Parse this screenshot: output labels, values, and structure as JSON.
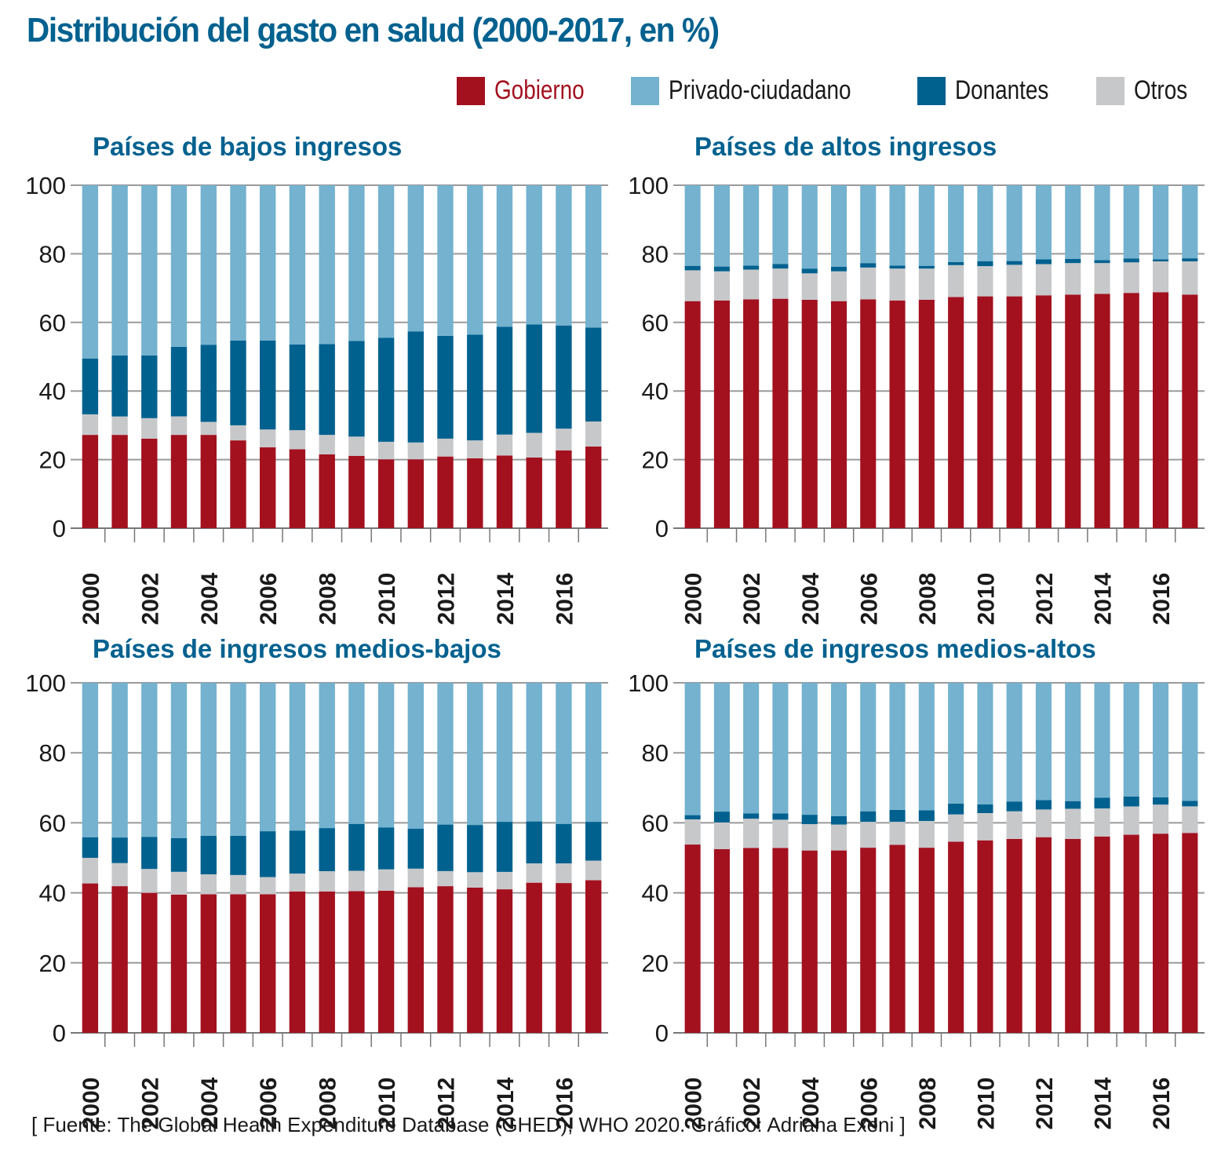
{
  "title": "Distribución del gasto en salud (2000-2017, en %)",
  "footer": "[ Fuente: The Global Health Expenditure Database (GHED), WHO 2020. Gráfico: Adriana Exeni ]",
  "legend": [
    {
      "key": "gobierno",
      "label": "Gobierno",
      "color": "#a3111f"
    },
    {
      "key": "privado",
      "label": "Privado-ciudadano",
      "color": "#74b2cf"
    },
    {
      "key": "donantes",
      "label": "Donantes",
      "color": "#00618f"
    },
    {
      "key": "otros",
      "label": "Otros",
      "color": "#c7c8ca"
    }
  ],
  "chart_data": [
    {
      "type": "bar",
      "stacked": true,
      "title": "Países de bajos ingresos",
      "x": [
        2000,
        2001,
        2002,
        2003,
        2004,
        2005,
        2006,
        2007,
        2008,
        2009,
        2010,
        2011,
        2012,
        2013,
        2014,
        2015,
        2016,
        2017
      ],
      "xtick_labels": [
        "2000",
        "2002",
        "2004",
        "2006",
        "2008",
        "2010",
        "2012",
        "2014",
        "2016"
      ],
      "ytick_labels": [
        "0",
        "20",
        "40",
        "60",
        "80",
        "100"
      ],
      "ylim": [
        0,
        100
      ],
      "grid": true,
      "series": [
        {
          "name": "Gobierno",
          "values": [
            27.2,
            27.2,
            26.1,
            27.2,
            27.2,
            25.6,
            23.6,
            23.0,
            21.5,
            21.1,
            20.1,
            20.1,
            20.9,
            20.4,
            21.2,
            20.6,
            22.7,
            23.8
          ]
        },
        {
          "name": "Otros",
          "values": [
            6.0,
            5.4,
            6.0,
            5.4,
            3.8,
            4.4,
            5.2,
            5.6,
            5.7,
            5.6,
            5.1,
            4.9,
            5.2,
            5.2,
            6.1,
            7.2,
            6.3,
            7.3
          ]
        },
        {
          "name": "Donantes",
          "values": [
            16.3,
            17.8,
            18.3,
            20.3,
            22.5,
            24.7,
            25.9,
            25.0,
            26.5,
            27.9,
            30.3,
            32.4,
            30.0,
            30.8,
            31.4,
            31.6,
            30.1,
            27.4
          ]
        },
        {
          "name": "Privado-ciudadano",
          "values": [
            50.5,
            49.6,
            49.6,
            47.1,
            46.5,
            45.3,
            45.3,
            46.4,
            46.3,
            45.4,
            44.5,
            42.6,
            43.9,
            43.6,
            41.3,
            40.6,
            40.9,
            41.5
          ]
        }
      ]
    },
    {
      "type": "bar",
      "stacked": true,
      "title": "Países de altos ingresos",
      "x": [
        2000,
        2001,
        2002,
        2003,
        2004,
        2005,
        2006,
        2007,
        2008,
        2009,
        2010,
        2011,
        2012,
        2013,
        2014,
        2015,
        2016,
        2017
      ],
      "xtick_labels": [
        "2000",
        "2002",
        "2004",
        "2006",
        "2008",
        "2010",
        "2012",
        "2014",
        "2016"
      ],
      "ytick_labels": [
        "0",
        "20",
        "40",
        "60",
        "80",
        "100"
      ],
      "ylim": [
        0,
        100
      ],
      "grid": true,
      "series": [
        {
          "name": "Gobierno",
          "values": [
            66.2,
            66.4,
            66.7,
            66.9,
            66.6,
            66.2,
            66.7,
            66.4,
            66.6,
            67.4,
            67.6,
            67.6,
            67.9,
            68.1,
            68.3,
            68.6,
            68.8,
            68.1
          ]
        },
        {
          "name": "Otros",
          "values": [
            9.0,
            8.5,
            8.7,
            8.8,
            7.7,
            8.7,
            9.3,
            9.3,
            9.1,
            9.3,
            8.8,
            9.2,
            9.1,
            9.2,
            9.0,
            8.9,
            9.0,
            9.7
          ]
        },
        {
          "name": "Donantes",
          "values": [
            1.3,
            1.4,
            1.2,
            1.3,
            1.4,
            1.3,
            1.3,
            0.9,
            0.8,
            0.9,
            1.4,
            1.1,
            1.4,
            1.2,
            0.9,
            1.1,
            0.6,
            0.9
          ]
        },
        {
          "name": "Privado-ciudadano",
          "values": [
            23.5,
            23.7,
            23.4,
            23.0,
            24.3,
            23.8,
            22.7,
            23.4,
            23.5,
            22.4,
            22.2,
            22.1,
            21.6,
            21.5,
            21.8,
            21.4,
            21.6,
            21.3
          ]
        }
      ]
    },
    {
      "type": "bar",
      "stacked": true,
      "title": "Países de ingresos medios-bajos",
      "x": [
        2000,
        2001,
        2002,
        2003,
        2004,
        2005,
        2006,
        2007,
        2008,
        2009,
        2010,
        2011,
        2012,
        2013,
        2014,
        2015,
        2016,
        2017
      ],
      "xtick_labels": [
        "2000",
        "2002",
        "2004",
        "2006",
        "2008",
        "2010",
        "2012",
        "2014",
        "2016"
      ],
      "ytick_labels": [
        "0",
        "20",
        "40",
        "60",
        "80",
        "100"
      ],
      "ylim": [
        0,
        100
      ],
      "grid": true,
      "series": [
        {
          "name": "Gobierno",
          "values": [
            42.7,
            41.9,
            40.0,
            39.5,
            39.6,
            39.6,
            39.6,
            40.4,
            40.4,
            40.5,
            40.6,
            41.6,
            41.9,
            41.5,
            41.0,
            42.9,
            42.8,
            43.6
          ]
        },
        {
          "name": "Otros",
          "values": [
            7.3,
            6.6,
            6.8,
            6.5,
            5.7,
            5.5,
            4.9,
            5.1,
            5.8,
            5.8,
            6.1,
            5.3,
            4.3,
            4.4,
            5.0,
            5.5,
            5.6,
            5.6
          ]
        },
        {
          "name": "Donantes",
          "values": [
            5.9,
            7.3,
            9.2,
            9.6,
            11.0,
            11.2,
            13.1,
            12.3,
            12.3,
            13.4,
            12.0,
            11.4,
            13.3,
            13.5,
            14.3,
            12.0,
            11.3,
            11.1
          ]
        },
        {
          "name": "Privado-ciudadano",
          "values": [
            44.1,
            44.2,
            44.0,
            44.4,
            43.7,
            43.7,
            42.4,
            42.2,
            41.5,
            40.3,
            41.3,
            41.7,
            40.5,
            40.6,
            39.7,
            39.6,
            40.3,
            39.7
          ]
        }
      ]
    },
    {
      "type": "bar",
      "stacked": true,
      "title": "Países de ingresos medios-altos",
      "x": [
        2000,
        2001,
        2002,
        2003,
        2004,
        2005,
        2006,
        2007,
        2008,
        2009,
        2010,
        2011,
        2012,
        2013,
        2014,
        2015,
        2016,
        2017
      ],
      "xtick_labels": [
        "2000",
        "2002",
        "2004",
        "2006",
        "2008",
        "2010",
        "2012",
        "2014",
        "2016"
      ],
      "ytick_labels": [
        "0",
        "20",
        "40",
        "60",
        "80",
        "100"
      ],
      "ylim": [
        0,
        100
      ],
      "grid": true,
      "series": [
        {
          "name": "Gobierno",
          "values": [
            53.8,
            52.5,
            52.8,
            52.8,
            52.1,
            52.1,
            52.9,
            53.7,
            52.9,
            54.6,
            55.0,
            55.4,
            55.9,
            55.4,
            56.1,
            56.6,
            56.9,
            57.1
          ]
        },
        {
          "name": "Otros",
          "values": [
            7.2,
            7.6,
            8.4,
            8.1,
            7.5,
            7.4,
            7.4,
            6.6,
            7.6,
            7.8,
            7.8,
            7.9,
            7.9,
            8.6,
            8.0,
            8.1,
            8.3,
            7.6
          ]
        },
        {
          "name": "Donantes",
          "values": [
            1.2,
            3.1,
            1.5,
            1.8,
            2.7,
            2.4,
            3.0,
            3.4,
            3.1,
            3.1,
            2.5,
            2.8,
            2.7,
            2.2,
            3.1,
            2.8,
            2.1,
            1.6
          ]
        },
        {
          "name": "Privado-ciudadano",
          "values": [
            37.8,
            36.8,
            37.3,
            37.3,
            37.7,
            38.1,
            36.7,
            36.3,
            36.4,
            34.5,
            34.7,
            33.9,
            33.5,
            33.8,
            32.8,
            32.5,
            32.7,
            33.7
          ]
        }
      ]
    }
  ]
}
